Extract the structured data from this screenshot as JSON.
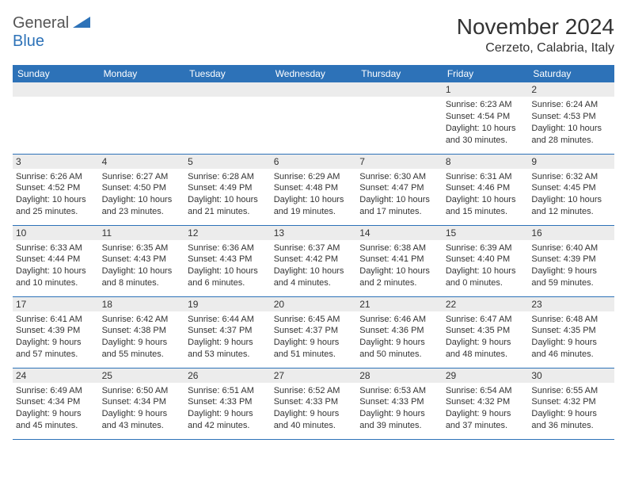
{
  "logo": {
    "part1": "General",
    "part2": "Blue"
  },
  "title": "November 2024",
  "location": "Cerzeto, Calabria, Italy",
  "colors": {
    "header_bg": "#2d72b8",
    "header_text": "#ffffff",
    "band_bg": "#ececec",
    "cell_border": "#2d72b8",
    "text": "#333333",
    "logo_gray": "#555555",
    "logo_blue": "#2d72b8"
  },
  "fonts": {
    "title_size": 28,
    "location_size": 16,
    "dow_size": 12,
    "daynum_size": 12,
    "body_size": 11
  },
  "days_of_week": [
    "Sunday",
    "Monday",
    "Tuesday",
    "Wednesday",
    "Thursday",
    "Friday",
    "Saturday"
  ],
  "weeks": [
    [
      null,
      null,
      null,
      null,
      null,
      {
        "n": "1",
        "sr": "6:23 AM",
        "ss": "4:54 PM",
        "dl": "10 hours and 30 minutes."
      },
      {
        "n": "2",
        "sr": "6:24 AM",
        "ss": "4:53 PM",
        "dl": "10 hours and 28 minutes."
      }
    ],
    [
      {
        "n": "3",
        "sr": "6:26 AM",
        "ss": "4:52 PM",
        "dl": "10 hours and 25 minutes."
      },
      {
        "n": "4",
        "sr": "6:27 AM",
        "ss": "4:50 PM",
        "dl": "10 hours and 23 minutes."
      },
      {
        "n": "5",
        "sr": "6:28 AM",
        "ss": "4:49 PM",
        "dl": "10 hours and 21 minutes."
      },
      {
        "n": "6",
        "sr": "6:29 AM",
        "ss": "4:48 PM",
        "dl": "10 hours and 19 minutes."
      },
      {
        "n": "7",
        "sr": "6:30 AM",
        "ss": "4:47 PM",
        "dl": "10 hours and 17 minutes."
      },
      {
        "n": "8",
        "sr": "6:31 AM",
        "ss": "4:46 PM",
        "dl": "10 hours and 15 minutes."
      },
      {
        "n": "9",
        "sr": "6:32 AM",
        "ss": "4:45 PM",
        "dl": "10 hours and 12 minutes."
      }
    ],
    [
      {
        "n": "10",
        "sr": "6:33 AM",
        "ss": "4:44 PM",
        "dl": "10 hours and 10 minutes."
      },
      {
        "n": "11",
        "sr": "6:35 AM",
        "ss": "4:43 PM",
        "dl": "10 hours and 8 minutes."
      },
      {
        "n": "12",
        "sr": "6:36 AM",
        "ss": "4:43 PM",
        "dl": "10 hours and 6 minutes."
      },
      {
        "n": "13",
        "sr": "6:37 AM",
        "ss": "4:42 PM",
        "dl": "10 hours and 4 minutes."
      },
      {
        "n": "14",
        "sr": "6:38 AM",
        "ss": "4:41 PM",
        "dl": "10 hours and 2 minutes."
      },
      {
        "n": "15",
        "sr": "6:39 AM",
        "ss": "4:40 PM",
        "dl": "10 hours and 0 minutes."
      },
      {
        "n": "16",
        "sr": "6:40 AM",
        "ss": "4:39 PM",
        "dl": "9 hours and 59 minutes."
      }
    ],
    [
      {
        "n": "17",
        "sr": "6:41 AM",
        "ss": "4:39 PM",
        "dl": "9 hours and 57 minutes."
      },
      {
        "n": "18",
        "sr": "6:42 AM",
        "ss": "4:38 PM",
        "dl": "9 hours and 55 minutes."
      },
      {
        "n": "19",
        "sr": "6:44 AM",
        "ss": "4:37 PM",
        "dl": "9 hours and 53 minutes."
      },
      {
        "n": "20",
        "sr": "6:45 AM",
        "ss": "4:37 PM",
        "dl": "9 hours and 51 minutes."
      },
      {
        "n": "21",
        "sr": "6:46 AM",
        "ss": "4:36 PM",
        "dl": "9 hours and 50 minutes."
      },
      {
        "n": "22",
        "sr": "6:47 AM",
        "ss": "4:35 PM",
        "dl": "9 hours and 48 minutes."
      },
      {
        "n": "23",
        "sr": "6:48 AM",
        "ss": "4:35 PM",
        "dl": "9 hours and 46 minutes."
      }
    ],
    [
      {
        "n": "24",
        "sr": "6:49 AM",
        "ss": "4:34 PM",
        "dl": "9 hours and 45 minutes."
      },
      {
        "n": "25",
        "sr": "6:50 AM",
        "ss": "4:34 PM",
        "dl": "9 hours and 43 minutes."
      },
      {
        "n": "26",
        "sr": "6:51 AM",
        "ss": "4:33 PM",
        "dl": "9 hours and 42 minutes."
      },
      {
        "n": "27",
        "sr": "6:52 AM",
        "ss": "4:33 PM",
        "dl": "9 hours and 40 minutes."
      },
      {
        "n": "28",
        "sr": "6:53 AM",
        "ss": "4:33 PM",
        "dl": "9 hours and 39 minutes."
      },
      {
        "n": "29",
        "sr": "6:54 AM",
        "ss": "4:32 PM",
        "dl": "9 hours and 37 minutes."
      },
      {
        "n": "30",
        "sr": "6:55 AM",
        "ss": "4:32 PM",
        "dl": "9 hours and 36 minutes."
      }
    ]
  ],
  "labels": {
    "sunrise": "Sunrise:",
    "sunset": "Sunset:",
    "daylight": "Daylight:"
  }
}
